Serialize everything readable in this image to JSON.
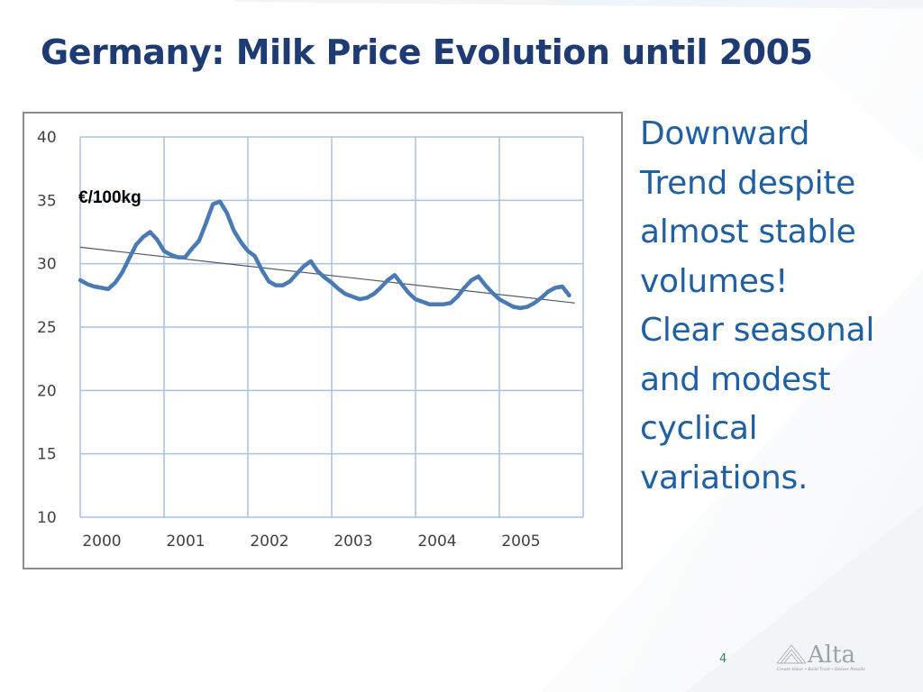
{
  "slide": {
    "title": "Germany: Milk Price Evolution until 2005",
    "side_text_lines": [
      "Downward",
      "Trend despite",
      "almost stable",
      "volumes!",
      "Clear seasonal",
      "and modest",
      "cyclical",
      "variations."
    ],
    "page_number": "4",
    "logo": {
      "name": "Alta",
      "tagline": "Create Value • Build Trust • Deliver Results",
      "icon": "mountain-logo-icon"
    },
    "colors": {
      "title": "#1f3b73",
      "side_text": "#1f5fa3",
      "series_line": "#4a7ab5",
      "trend_line": "#4d5a66",
      "grid": "#a9c2e0"
    }
  },
  "chart_data": {
    "type": "line",
    "title": "",
    "xlabel": "",
    "ylabel": "€/100kg",
    "unit_label": "€/100kg",
    "ylim": [
      10,
      40
    ],
    "yticks": [
      10,
      15,
      20,
      25,
      30,
      35,
      40
    ],
    "xlim": [
      2000,
      2006
    ],
    "x_tick_labels": [
      "2000",
      "2001",
      "2002",
      "2003",
      "2004",
      "2005"
    ],
    "grid": true,
    "legend": "none",
    "x_start": "2000-01",
    "x_step": "month",
    "series": [
      {
        "values": [
          28.7,
          28.4,
          28.2,
          28.1,
          28.0,
          28.5,
          29.3,
          30.4,
          31.5,
          32.1,
          32.5,
          31.9,
          31.0,
          30.7,
          30.5,
          30.5,
          31.2,
          31.8,
          33.2,
          34.7,
          34.9,
          34.0,
          32.6,
          31.7,
          31.0,
          30.6,
          29.5,
          28.6,
          28.3,
          28.3,
          28.6,
          29.2,
          29.8,
          30.2,
          29.4,
          28.9,
          28.5,
          28.0,
          27.6,
          27.4,
          27.2,
          27.3,
          27.6,
          28.1,
          28.7,
          29.1,
          28.4,
          27.7,
          27.2,
          27.0,
          26.8,
          26.8,
          26.8,
          26.9,
          27.4,
          28.1,
          28.7,
          29.0,
          28.3,
          27.7,
          27.2,
          26.9,
          26.6,
          26.5,
          26.6,
          26.9,
          27.3,
          27.8,
          28.1,
          28.2,
          27.5
        ]
      }
    ],
    "trend_line": {
      "start": [
        2000,
        31.3
      ],
      "end": [
        2005.9,
        26.9
      ]
    }
  }
}
